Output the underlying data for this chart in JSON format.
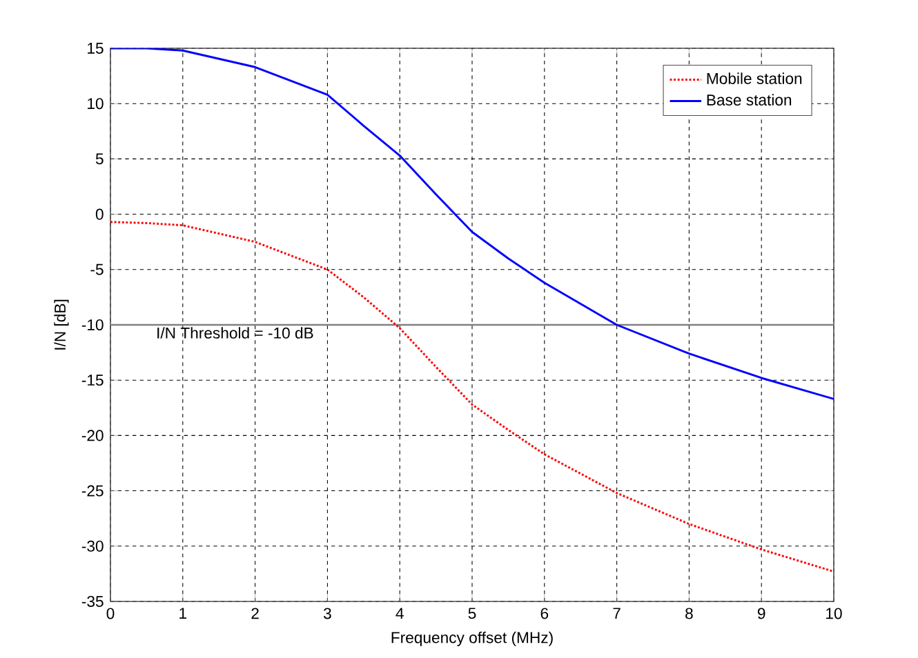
{
  "chart_data": {
    "type": "line",
    "xlabel": "Frequency offset (MHz)",
    "ylabel": "I/N [dB]",
    "x": [
      0,
      0.5,
      1,
      2,
      3,
      3.5,
      4,
      4.5,
      5,
      5.5,
      6,
      7,
      8,
      9,
      10
    ],
    "series": [
      {
        "name": "Mobile station",
        "color": "#ff0000",
        "line_style": "dotted",
        "values": [
          -0.7,
          -0.8,
          -1,
          -2.5,
          -5,
          -7.5,
          -10.3,
          -13.8,
          -17.2,
          -19.5,
          -21.7,
          -25.2,
          -28,
          -30.3,
          -32.3
        ]
      },
      {
        "name": "Base station",
        "color": "#0000ff",
        "line_style": "solid",
        "values": [
          15,
          15,
          14.8,
          13.3,
          10.8,
          8,
          5.3,
          1.8,
          -1.6,
          -4,
          -6.2,
          -10,
          -12.6,
          -14.8,
          -16.7
        ]
      }
    ],
    "xlim": [
      0,
      10
    ],
    "ylim": [
      -35,
      15
    ],
    "xticks": [
      0,
      1,
      2,
      3,
      4,
      5,
      6,
      7,
      8,
      9,
      10
    ],
    "yticks": [
      -35,
      -30,
      -25,
      -20,
      -15,
      -10,
      -5,
      0,
      5,
      10,
      15
    ],
    "ref_lines": [
      {
        "axis": "y",
        "value": -10,
        "label": "I/N Threshold = -10 dB",
        "color": "#808080"
      }
    ],
    "grid": true,
    "legend": "top right",
    "marker": "none"
  }
}
